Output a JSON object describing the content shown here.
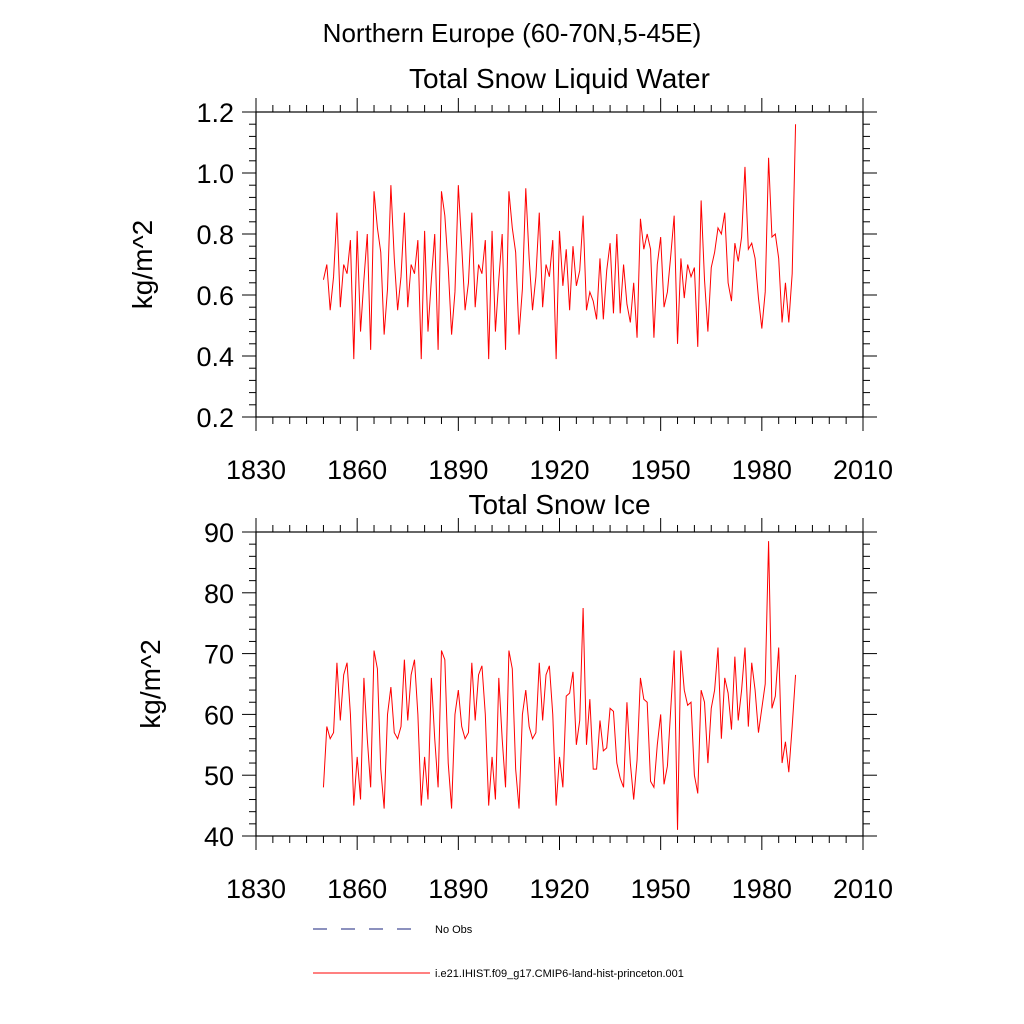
{
  "figure": {
    "suptitle": "Northern Europe (60-70N,5-45E)"
  },
  "legend": {
    "entries": [
      {
        "label": "No Obs",
        "style": "dashed",
        "color": "#1a237e"
      },
      {
        "label": "i.e21.IHIST.f09_g17.CMIP6-land-hist-princeton.001",
        "style": "solid",
        "color": "#ff0000"
      }
    ]
  },
  "chart_data": [
    {
      "type": "line",
      "title": "Total Snow Liquid Water",
      "xlabel": "",
      "ylabel": "kg/m^2",
      "xlim": [
        1830,
        2010
      ],
      "ylim": [
        0.2,
        1.2
      ],
      "xticks": [
        1830,
        1860,
        1890,
        1920,
        1950,
        1980,
        2010
      ],
      "yticks": [
        0.2,
        0.4,
        0.6,
        0.8,
        1.0,
        1.2
      ],
      "ytick_labels": [
        "0.2",
        "0.4",
        "0.6",
        "0.8",
        "1.0",
        "1.2"
      ],
      "grid": false,
      "series": [
        {
          "name": "i.e21.IHIST.f09_g17.CMIP6-land-hist-princeton.001",
          "color": "#ff0000",
          "x_start": 1850,
          "x_step": 1,
          "values": [
            0.65,
            0.7,
            0.55,
            0.66,
            0.87,
            0.56,
            0.7,
            0.67,
            0.78,
            0.39,
            0.81,
            0.48,
            0.65,
            0.8,
            0.42,
            0.94,
            0.82,
            0.74,
            0.47,
            0.62,
            0.96,
            0.72,
            0.55,
            0.66,
            0.87,
            0.56,
            0.7,
            0.67,
            0.78,
            0.39,
            0.81,
            0.48,
            0.65,
            0.8,
            0.42,
            0.94,
            0.86,
            0.69,
            0.47,
            0.61,
            0.96,
            0.76,
            0.55,
            0.64,
            0.87,
            0.56,
            0.7,
            0.67,
            0.78,
            0.39,
            0.81,
            0.48,
            0.65,
            0.8,
            0.42,
            0.94,
            0.82,
            0.74,
            0.47,
            0.62,
            0.95,
            0.72,
            0.55,
            0.66,
            0.87,
            0.56,
            0.7,
            0.66,
            0.78,
            0.39,
            0.81,
            0.63,
            0.75,
            0.55,
            0.76,
            0.63,
            0.68,
            0.86,
            0.55,
            0.61,
            0.58,
            0.52,
            0.72,
            0.52,
            0.68,
            0.77,
            0.54,
            0.8,
            0.54,
            0.7,
            0.57,
            0.51,
            0.64,
            0.46,
            0.85,
            0.75,
            0.8,
            0.75,
            0.46,
            0.7,
            0.79,
            0.56,
            0.61,
            0.73,
            0.86,
            0.44,
            0.72,
            0.59,
            0.7,
            0.66,
            0.69,
            0.43,
            0.91,
            0.65,
            0.48,
            0.69,
            0.74,
            0.82,
            0.8,
            0.87,
            0.64,
            0.58,
            0.77,
            0.71,
            0.79,
            1.02,
            0.75,
            0.77,
            0.72,
            0.59,
            0.49,
            0.61,
            1.05,
            0.79,
            0.8,
            0.72,
            0.51,
            0.64,
            0.51,
            0.67,
            1.16
          ]
        }
      ]
    },
    {
      "type": "line",
      "title": "Total Snow Ice",
      "xlabel": "",
      "ylabel": "kg/m^2",
      "xlim": [
        1830,
        2010
      ],
      "ylim": [
        40,
        90
      ],
      "xticks": [
        1830,
        1860,
        1890,
        1920,
        1950,
        1980,
        2010
      ],
      "yticks": [
        40,
        50,
        60,
        70,
        80,
        90
      ],
      "ytick_labels": [
        "40",
        "50",
        "60",
        "70",
        "80",
        "90"
      ],
      "grid": false,
      "series": [
        {
          "name": "i.e21.IHIST.f09_g17.CMIP6-land-hist-princeton.001",
          "color": "#ff0000",
          "x_start": 1850,
          "x_step": 1,
          "values": [
            48,
            58,
            56,
            57,
            68.5,
            59,
            66.5,
            68.5,
            60,
            45,
            53,
            46,
            66,
            56,
            48,
            70.5,
            67.5,
            51,
            44.5,
            60,
            64.5,
            57,
            56,
            58,
            69,
            59,
            66.5,
            69,
            60,
            45,
            53,
            46,
            66,
            56,
            48,
            70.5,
            69,
            52,
            44.5,
            60,
            64,
            58,
            56,
            57,
            68.5,
            59,
            66.5,
            68,
            60,
            45,
            53,
            46,
            66,
            56,
            48,
            70.5,
            67.5,
            51,
            44.5,
            60,
            64,
            58,
            56,
            57,
            68.5,
            59,
            66.5,
            68,
            60,
            45,
            53,
            48,
            63,
            63.5,
            67,
            55,
            59,
            77.5,
            55,
            62.5,
            51,
            51,
            59,
            54,
            54.5,
            61,
            60.5,
            52,
            49.5,
            48,
            62,
            52,
            46,
            52.5,
            66,
            62.5,
            62,
            49,
            48,
            55,
            60,
            48.5,
            51.5,
            61,
            70.5,
            41,
            70.5,
            64,
            61.5,
            62,
            50,
            47,
            64,
            62,
            52,
            61,
            64,
            71,
            56,
            66,
            63.5,
            57.5,
            69.5,
            59,
            64,
            71,
            58,
            68.5,
            64,
            57,
            61,
            65,
            88.5,
            61,
            63,
            71,
            52,
            55.5,
            50.5,
            58,
            66.5
          ]
        }
      ]
    }
  ]
}
